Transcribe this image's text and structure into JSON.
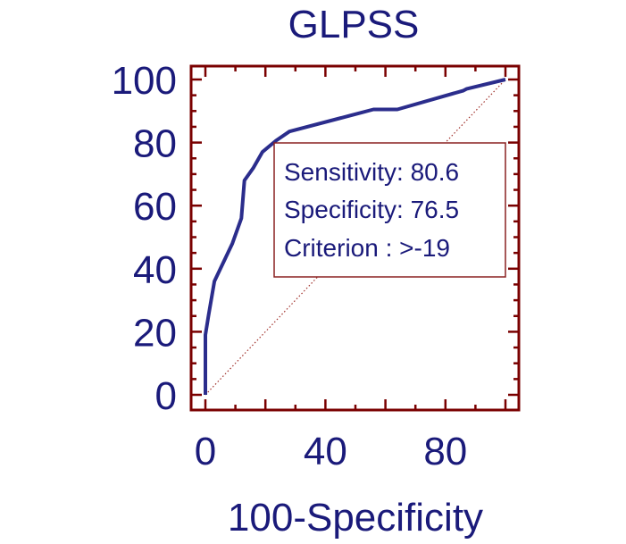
{
  "chart_data": {
    "type": "line",
    "title": "GLPSS",
    "xlabel": "100-Specificity",
    "ylabel": "",
    "xlim": [
      0,
      100
    ],
    "ylim": [
      0,
      100
    ],
    "xticks": [
      0,
      40,
      80
    ],
    "yticks": [
      0,
      20,
      40,
      60,
      80,
      100
    ],
    "grid": false,
    "legend": "none",
    "series": [
      {
        "color": "#2b2d8c",
        "x": [
          0,
          0,
          1,
          3,
          9,
          12,
          13,
          16,
          19,
          23.5,
          28,
          56,
          64,
          86,
          87,
          100
        ],
        "y": [
          0,
          19,
          25,
          36,
          48,
          56,
          68,
          72,
          77,
          80.6,
          83.5,
          90.5,
          90.5,
          96.5,
          97,
          100
        ]
      }
    ],
    "reference_line": {
      "x": [
        0,
        100
      ],
      "y": [
        0,
        100
      ],
      "color": "#a0302a",
      "style": "dotted"
    },
    "annotation": {
      "lines": [
        "Sensitivity: 80.6",
        "Specificity: 76.5",
        "Criterion : >-19"
      ]
    },
    "colors": {
      "axis": "#7a0000",
      "text": "#1a1a7a",
      "curve": "#2b2d8c",
      "box_border": "#8a2020"
    }
  }
}
